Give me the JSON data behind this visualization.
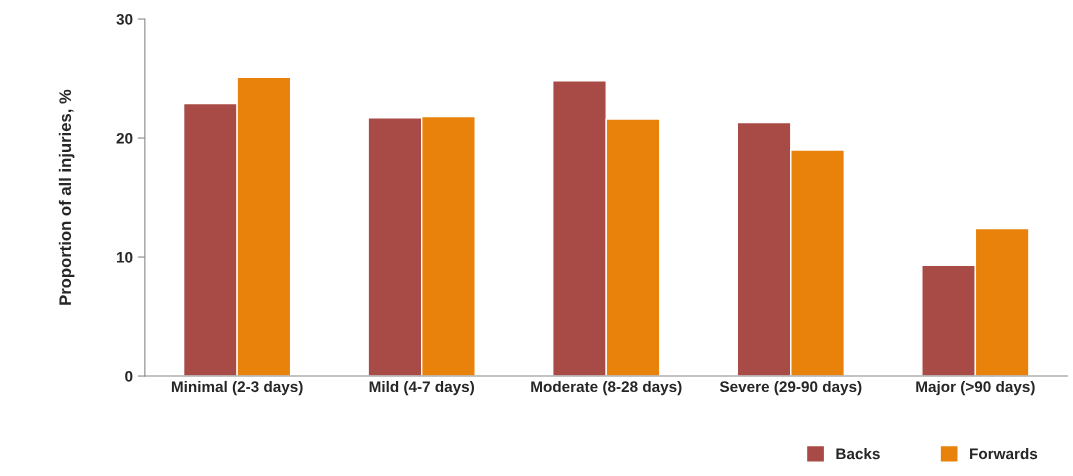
{
  "chart_data": {
    "type": "bar",
    "ylabel": "Proportion of all injuries, %",
    "categories": [
      "Minimal (2-3 days)",
      "Mild (4-7 days)",
      "Moderate (8-28 days)",
      "Severe (29-90 days)",
      "Major (>90 days)"
    ],
    "series": [
      {
        "name": "Backs",
        "color": "#a84a45",
        "values": [
          22.9,
          21.7,
          24.8,
          21.3,
          9.3
        ]
      },
      {
        "name": "Forwards",
        "color": "#e8820a",
        "values": [
          25.1,
          21.8,
          21.6,
          19.0,
          12.4
        ]
      }
    ],
    "ylim": [
      0,
      30
    ],
    "yticks": [
      0,
      10,
      20,
      30
    ],
    "grid": false,
    "legend": "bottom right"
  }
}
